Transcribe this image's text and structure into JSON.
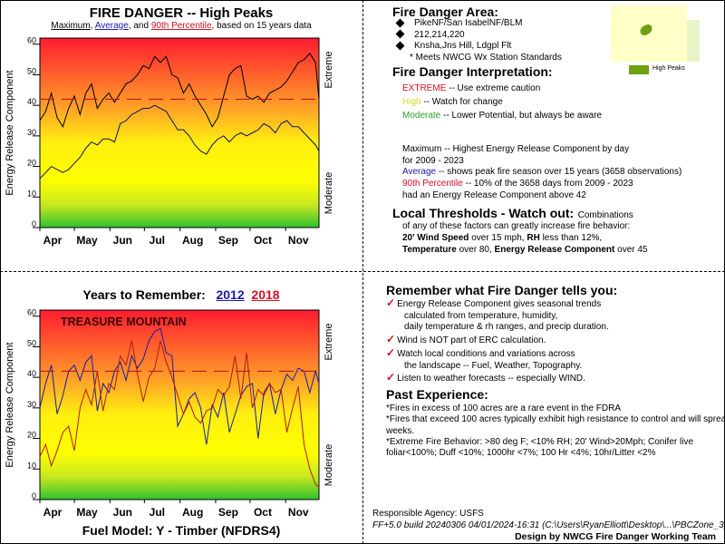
{
  "top_chart": {
    "title": "FIRE DANGER -- High Peaks",
    "subtitle_parts": [
      "Maximum",
      ", ",
      "Average",
      ", and ",
      "90th Percentile",
      ", based on 15 years data"
    ]
  },
  "bottom_chart": {
    "title_prefix": "Years to Remember:",
    "year1": "2012",
    "year2": "2018",
    "station_label": "TREASURE MOUNTAIN",
    "fuel_model": "Fuel Model: Y - Timber (NFDRS4)"
  },
  "colors": {
    "max": "#000000",
    "average": "#1a1aa8",
    "percentile": "#c01818",
    "y2012": "#1a1aa8",
    "y2018": "#b01818",
    "extreme": "#d01020",
    "high": "#d8d820",
    "moderate": "#30a030"
  },
  "chart_data": [
    {
      "type": "line",
      "title": "FIRE DANGER -- High Peaks",
      "xlabel": "",
      "ylabel": "Energy Release Component",
      "ylim": [
        0,
        62
      ],
      "yticks": [
        0,
        10,
        20,
        30,
        40,
        50,
        60
      ],
      "xticks": [
        "Apr",
        "May",
        "Jun",
        "Jul",
        "Aug",
        "Sep",
        "Oct",
        "Nov"
      ],
      "right_labels": [
        "Extreme",
        "Moderate"
      ],
      "grid": false,
      "x_unit": "day-of-season (0 = Apr 1, 243 = Nov 30)",
      "x": [
        0,
        5,
        10,
        15,
        20,
        25,
        30,
        35,
        40,
        45,
        50,
        55,
        60,
        65,
        70,
        75,
        80,
        85,
        90,
        95,
        100,
        105,
        110,
        115,
        120,
        125,
        130,
        135,
        140,
        145,
        150,
        155,
        160,
        165,
        170,
        175,
        180,
        185,
        190,
        195,
        200,
        205,
        210,
        215,
        220,
        225,
        230,
        235,
        240,
        243
      ],
      "series": [
        {
          "name": "Maximum",
          "values": [
            35,
            38,
            44,
            36,
            33,
            39,
            43,
            37,
            44,
            47,
            39,
            42,
            44,
            41,
            44,
            47,
            48,
            50,
            53,
            52,
            56,
            54,
            56,
            50,
            49,
            44,
            47,
            43,
            40,
            37,
            33,
            36,
            43,
            50,
            52,
            53,
            43,
            42,
            43,
            41,
            44,
            45,
            46,
            48,
            51,
            54,
            55,
            57,
            54,
            42
          ]
        },
        {
          "name": "Average",
          "values": [
            16,
            18,
            20,
            19,
            18,
            19,
            21,
            23,
            26,
            28,
            27,
            29,
            29,
            28,
            34,
            35,
            37,
            38,
            39,
            39,
            40,
            39,
            38,
            35,
            32,
            32,
            30,
            27,
            25,
            24,
            27,
            29,
            30,
            28,
            30,
            31,
            30,
            31,
            32,
            34,
            33,
            31,
            34,
            35,
            33,
            33,
            31,
            29,
            27,
            25
          ]
        },
        {
          "name": "90th Percentile",
          "values": [
            42,
            42,
            42,
            42,
            42,
            42,
            42,
            42,
            42,
            42,
            42,
            42,
            42,
            42,
            42,
            42,
            42,
            42,
            42,
            42,
            42,
            42,
            42,
            42,
            42,
            42,
            42,
            42,
            42,
            42,
            42,
            42,
            42,
            42,
            42,
            42,
            42,
            42,
            42,
            42,
            42,
            42,
            42,
            42,
            42,
            42,
            42,
            42,
            42,
            42
          ]
        }
      ]
    },
    {
      "type": "line",
      "title": "Years to Remember: 2012 2018",
      "xlabel": "Fuel Model: Y - Timber (NFDRS4)",
      "ylabel": "Energy Release Component",
      "ylim": [
        0,
        62
      ],
      "yticks": [
        0,
        10,
        20,
        30,
        40,
        50,
        60
      ],
      "xticks": [
        "Apr",
        "May",
        "Jun",
        "Jul",
        "Aug",
        "Sep",
        "Oct",
        "Nov"
      ],
      "right_labels": [
        "Extreme",
        "Moderate"
      ],
      "annotation": "TREASURE MOUNTAIN",
      "grid": false,
      "x_unit": "day-of-season (0 = Apr 1, 243 = Nov 30)",
      "x": [
        0,
        5,
        10,
        15,
        20,
        25,
        30,
        35,
        40,
        45,
        50,
        55,
        60,
        65,
        70,
        75,
        80,
        85,
        90,
        95,
        100,
        105,
        110,
        115,
        120,
        125,
        130,
        135,
        140,
        145,
        150,
        155,
        160,
        165,
        170,
        175,
        180,
        185,
        190,
        195,
        200,
        205,
        210,
        215,
        220,
        225,
        230,
        235,
        240,
        243
      ],
      "series": [
        {
          "name": "2012",
          "values": [
            30,
            38,
            44,
            28,
            34,
            42,
            44,
            39,
            45,
            47,
            29,
            38,
            35,
            42,
            45,
            39,
            47,
            43,
            46,
            52,
            55,
            56,
            48,
            47,
            24,
            28,
            33,
            35,
            30,
            18,
            31,
            27,
            35,
            22,
            28,
            34,
            37,
            38,
            20,
            35,
            38,
            28,
            36,
            41,
            39,
            43,
            42,
            35,
            42,
            38
          ]
        },
        {
          "name": "2018",
          "values": [
            14,
            18,
            11,
            16,
            22,
            24,
            16,
            30,
            36,
            31,
            42,
            29,
            38,
            36,
            47,
            44,
            52,
            41,
            32,
            40,
            43,
            52,
            45,
            40,
            34,
            28,
            32,
            27,
            25,
            29,
            30,
            36,
            34,
            37,
            47,
            33,
            48,
            30,
            36,
            34,
            38,
            35,
            36,
            22,
            30,
            37,
            18,
            10,
            5,
            4
          ]
        },
        {
          "name": "90th Percentile",
          "values": [
            42,
            42,
            42,
            42,
            42,
            42,
            42,
            42,
            42,
            42,
            42,
            42,
            42,
            42,
            42,
            42,
            42,
            42,
            42,
            42,
            42,
            42,
            42,
            42,
            42,
            42,
            42,
            42,
            42,
            42,
            42,
            42,
            42,
            42,
            42,
            42,
            42,
            42,
            42,
            42,
            42,
            42,
            42,
            42,
            42,
            42,
            42,
            42,
            42,
            42
          ]
        }
      ]
    }
  ],
  "area": {
    "heading": "Fire Danger Area:",
    "items": [
      "PikeNF/San IsabelNF/BLM",
      "212,214,220",
      "Knsha,Jns Hill, Ldgpl Flt"
    ],
    "note": "* Meets NWCG Wx Station Standards",
    "map_legend": "High Peaks"
  },
  "interpretation": {
    "heading": "Fire Danger Interpretation:",
    "levels": [
      {
        "label": "EXTREME",
        "text": " -- Use extreme caution"
      },
      {
        "label": "High",
        "text": " -- Watch for change"
      },
      {
        "label": "Moderate",
        "text": " -- Lower Potential, but always be aware"
      }
    ]
  },
  "explanations": {
    "max_label": "Maximum",
    "max_text": " -- Highest Energy Release Component by day",
    "max_text2": "for 2009 - 2023",
    "avg_label": "Average",
    "avg_text": " -- shows peak fire season over 15 years (3658 observations)",
    "pct_label": "90th Percentile",
    "pct_text": "  -- 10% of the 3658 days from 2009 - 2023",
    "pct_text2": "had an Energy Release Component above 42"
  },
  "thresholds": {
    "heading": "Local Thresholds - Watch out:",
    "intro": "Combinations",
    "intro2": "of any of these factors can greatly increase fire behavior:",
    "wind_label": "20' Wind Speed",
    "wind_text": " over 15 mph, ",
    "rh_label": "RH",
    "rh_text": "  less than 12%,",
    "temp_label": "Temperature",
    "temp_text": " over 80, ",
    "erc_label": "Energy Release Component",
    "erc_text": " over 45"
  },
  "remember": {
    "heading": "Remember what Fire Danger tells you:",
    "items": [
      {
        "line": "Energy Release Component gives seasonal trends",
        "cont": [
          "calculated from temperature, humidity,",
          "daily temperature & rh ranges, and precip duration."
        ]
      },
      {
        "line": "Wind is NOT part of ERC calculation.",
        "cont": []
      },
      {
        "line": "Watch local conditions and variations across",
        "cont": [
          "the landscape -- Fuel, Weather, Topography."
        ]
      },
      {
        "line": "Listen to weather forecasts -- especially WIND.",
        "cont": []
      }
    ]
  },
  "past": {
    "heading": "Past Experience:",
    "lines": [
      "*Fires in excess of 100 acres are a rare event in the FDRA",
      "*Fires that exceed 100 acres typically exhibit high resistance to control and will spread for",
      "weeks.",
      "*Extreme Fire Behavior: >80 deg F; <10% RH; 20' Wind>20Mph; Conifer live",
      "foliar<100%; Duff <10%; 1000hr <7%; 100 Hr <4%; 10hr/Litter <2%"
    ]
  },
  "footer": {
    "agency": "Responsible Agency: USFS",
    "build": "FF+5.0 build 20240306 04/01/2024-16:31 (C:\\Users\\RyanElliott\\Desktop\\...\\PBCZone_3_30)",
    "design": "Design by NWCG Fire Danger Working Team"
  }
}
